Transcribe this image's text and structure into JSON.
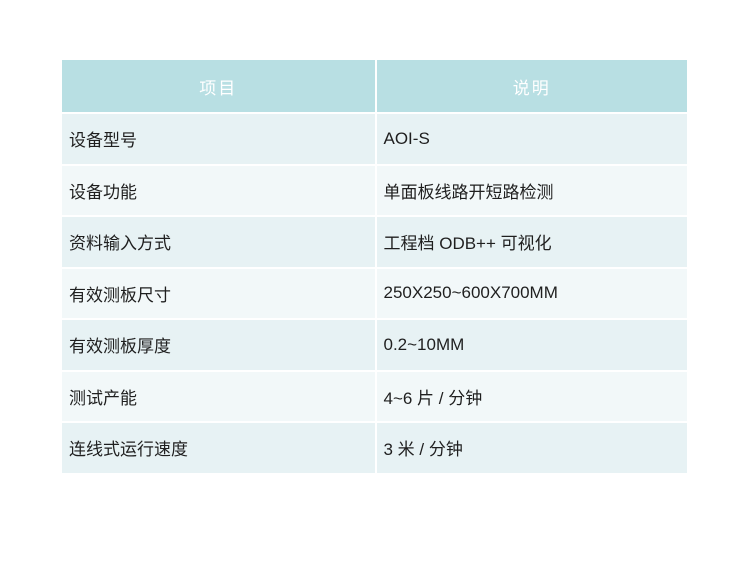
{
  "page": {
    "background": "#ffffff"
  },
  "table": {
    "columns": [
      {
        "label": "项目"
      },
      {
        "label": "说明"
      }
    ],
    "rows": [
      {
        "label": "设备型号",
        "value": "AOI-S"
      },
      {
        "label": "设备功能",
        "value": "单面板线路开短路检测"
      },
      {
        "label": "资料输入方式",
        "value": "工程档 ODB++ 可视化"
      },
      {
        "label": "有效测板尺寸",
        "value": "250X250~600X700MM"
      },
      {
        "label": "有效测板厚度",
        "value": "0.2~10MM"
      },
      {
        "label": "测试产能",
        "value": "4~6 片 / 分钟"
      },
      {
        "label": "连线式运行速度",
        "value": "3 米 / 分钟"
      }
    ],
    "colors": {
      "header_bg": "#b8dfe3",
      "header_text": "#ffffff",
      "row_odd_bg": "#e7f2f4",
      "row_even_bg": "#f2f8f9",
      "body_text": "#1f1f1f",
      "divider": "#ffffff"
    }
  }
}
